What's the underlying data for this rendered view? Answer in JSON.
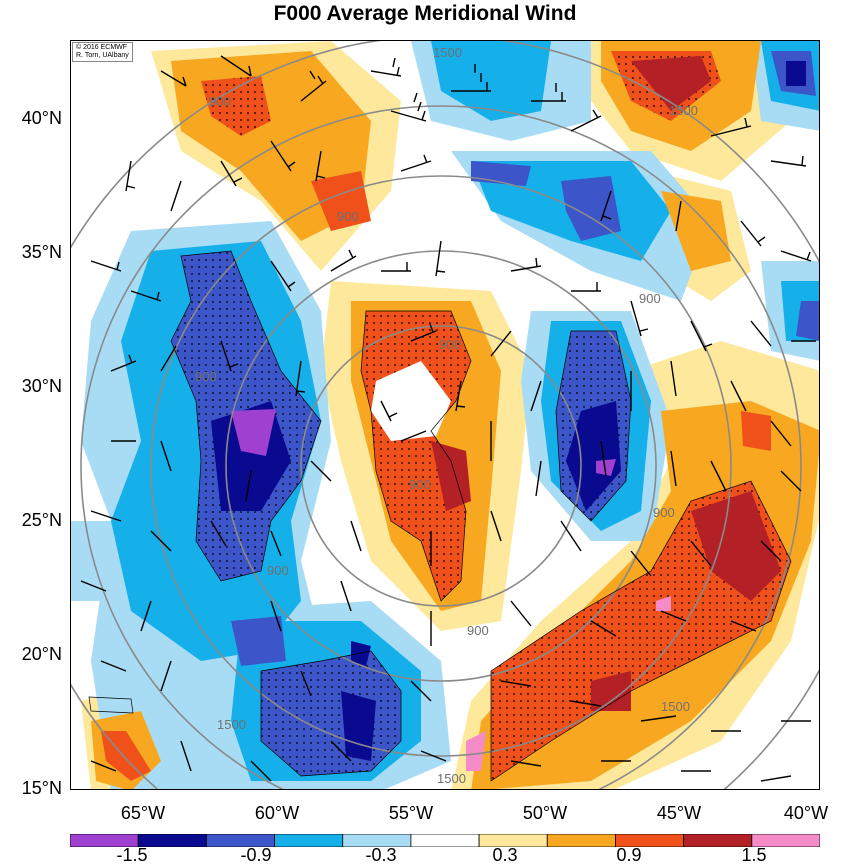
{
  "title": "F000 Average Meridional Wind",
  "credit": {
    "line1": "© 2016 ECMWF",
    "line2": "R. Torn, UAlbany"
  },
  "y_labels": [
    "40°N",
    "35°N",
    "30°N",
    "25°N",
    "20°N",
    "15°N"
  ],
  "x_labels": [
    "65°W",
    "60°W",
    "55°W",
    "50°W",
    "45°W",
    "40°W"
  ],
  "colorbar": {
    "colors": [
      "#a040d0",
      "#0a0a90",
      "#3c55c8",
      "#15b0ea",
      "#a8dcf5",
      "#ffffff",
      "#fde89b",
      "#f7a820",
      "#f0501a",
      "#b32025",
      "#f58cc8"
    ],
    "labels": [
      "-1.5",
      "-0.9",
      "-0.3",
      "0.3",
      "0.9",
      "1.5"
    ]
  },
  "contour_labels": [
    "1500",
    "1500",
    "900",
    "900",
    "900",
    "900",
    "900",
    "900",
    "900",
    "900",
    "900",
    "1500",
    "1500",
    "1500"
  ]
}
